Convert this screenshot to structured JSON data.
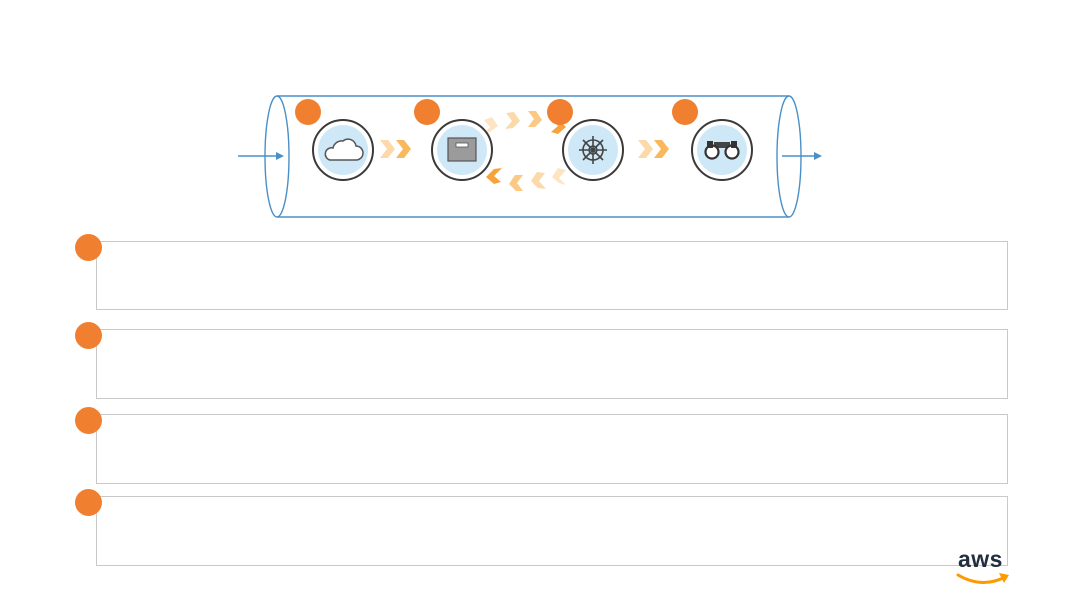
{
  "colors": {
    "accent": "#f08030",
    "chevron_light": "#fcd9a8",
    "chevron_mid": "#f9b85c",
    "line_blue": "#4a90c8",
    "icon_fill": "#cfe8f7",
    "box_border": "#c9c9c9",
    "aws_text": "#232f3e",
    "aws_smile": "#f90"
  },
  "pipeline": {
    "stages": [
      {
        "icon": "cloud-icon",
        "number": ""
      },
      {
        "icon": "storage-box-icon",
        "number": ""
      },
      {
        "icon": "helm-wheel-icon",
        "number": ""
      },
      {
        "icon": "binoculars-icon",
        "number": ""
      }
    ]
  },
  "steps": [
    {
      "number": "",
      "text": ""
    },
    {
      "number": "",
      "text": ""
    },
    {
      "number": "",
      "text": ""
    },
    {
      "number": "",
      "text": ""
    }
  ],
  "logo": {
    "text": "aws"
  }
}
